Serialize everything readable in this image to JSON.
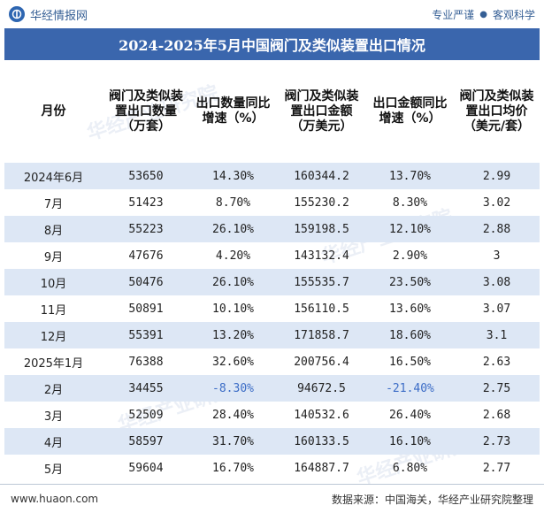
{
  "header": {
    "brand": "华经情报网",
    "tagline_left": "专业严谨",
    "tagline_sep": "●",
    "tagline_right": "客观科学"
  },
  "title": "2024-2025年5月中国阀门及类似装置出口情况",
  "columns": [
    "月份",
    "阀门及类似装置出口数量（万套）",
    "出口数量同比增速（%）",
    "阀门及类似装置出口金额（万美元）",
    "出口金额同比增速（%）",
    "阀门及类似装置出口均价（美元/套）"
  ],
  "rows": [
    {
      "month": "2024年6月",
      "qty": "53650",
      "qty_yoy": "14.30%",
      "amount": "160344.2",
      "amount_yoy": "13.70%",
      "price": "2.99"
    },
    {
      "month": "7月",
      "qty": "51423",
      "qty_yoy": "8.70%",
      "amount": "155230.2",
      "amount_yoy": "8.30%",
      "price": "3.02"
    },
    {
      "month": "8月",
      "qty": "55223",
      "qty_yoy": "26.10%",
      "amount": "159198.5",
      "amount_yoy": "12.10%",
      "price": "2.88"
    },
    {
      "month": "9月",
      "qty": "47676",
      "qty_yoy": "4.20%",
      "amount": "143132.4",
      "amount_yoy": "2.90%",
      "price": "3"
    },
    {
      "month": "10月",
      "qty": "50476",
      "qty_yoy": "26.10%",
      "amount": "155535.7",
      "amount_yoy": "23.50%",
      "price": "3.08"
    },
    {
      "month": "11月",
      "qty": "50891",
      "qty_yoy": "10.10%",
      "amount": "156110.5",
      "amount_yoy": "13.60%",
      "price": "3.07"
    },
    {
      "month": "12月",
      "qty": "55391",
      "qty_yoy": "13.20%",
      "amount": "171858.7",
      "amount_yoy": "18.60%",
      "price": "3.1"
    },
    {
      "month": "2025年1月",
      "qty": "76388",
      "qty_yoy": "32.60%",
      "amount": "200756.4",
      "amount_yoy": "16.50%",
      "price": "2.63"
    },
    {
      "month": "2月",
      "qty": "34455",
      "qty_yoy": "-8.30%",
      "amount": "94672.5",
      "amount_yoy": "-21.40%",
      "price": "2.75"
    },
    {
      "month": "3月",
      "qty": "52509",
      "qty_yoy": "28.40%",
      "amount": "140532.6",
      "amount_yoy": "26.40%",
      "price": "2.68"
    },
    {
      "month": "4月",
      "qty": "58597",
      "qty_yoy": "31.70%",
      "amount": "160133.5",
      "amount_yoy": "16.10%",
      "price": "2.73"
    },
    {
      "month": "5月",
      "qty": "59604",
      "qty_yoy": "16.70%",
      "amount": "164887.7",
      "amount_yoy": "6.80%",
      "price": "2.77"
    }
  ],
  "footer": {
    "site": "www.huaon.com",
    "source": "数据来源：中国海关，华经产业研究院整理"
  },
  "watermark_text": "华经产业研究院",
  "colors": {
    "title_bg": "#3a66ad",
    "alt_row": "#dde7f5",
    "negative": "#3b6cc6",
    "brand": "#355f95"
  }
}
